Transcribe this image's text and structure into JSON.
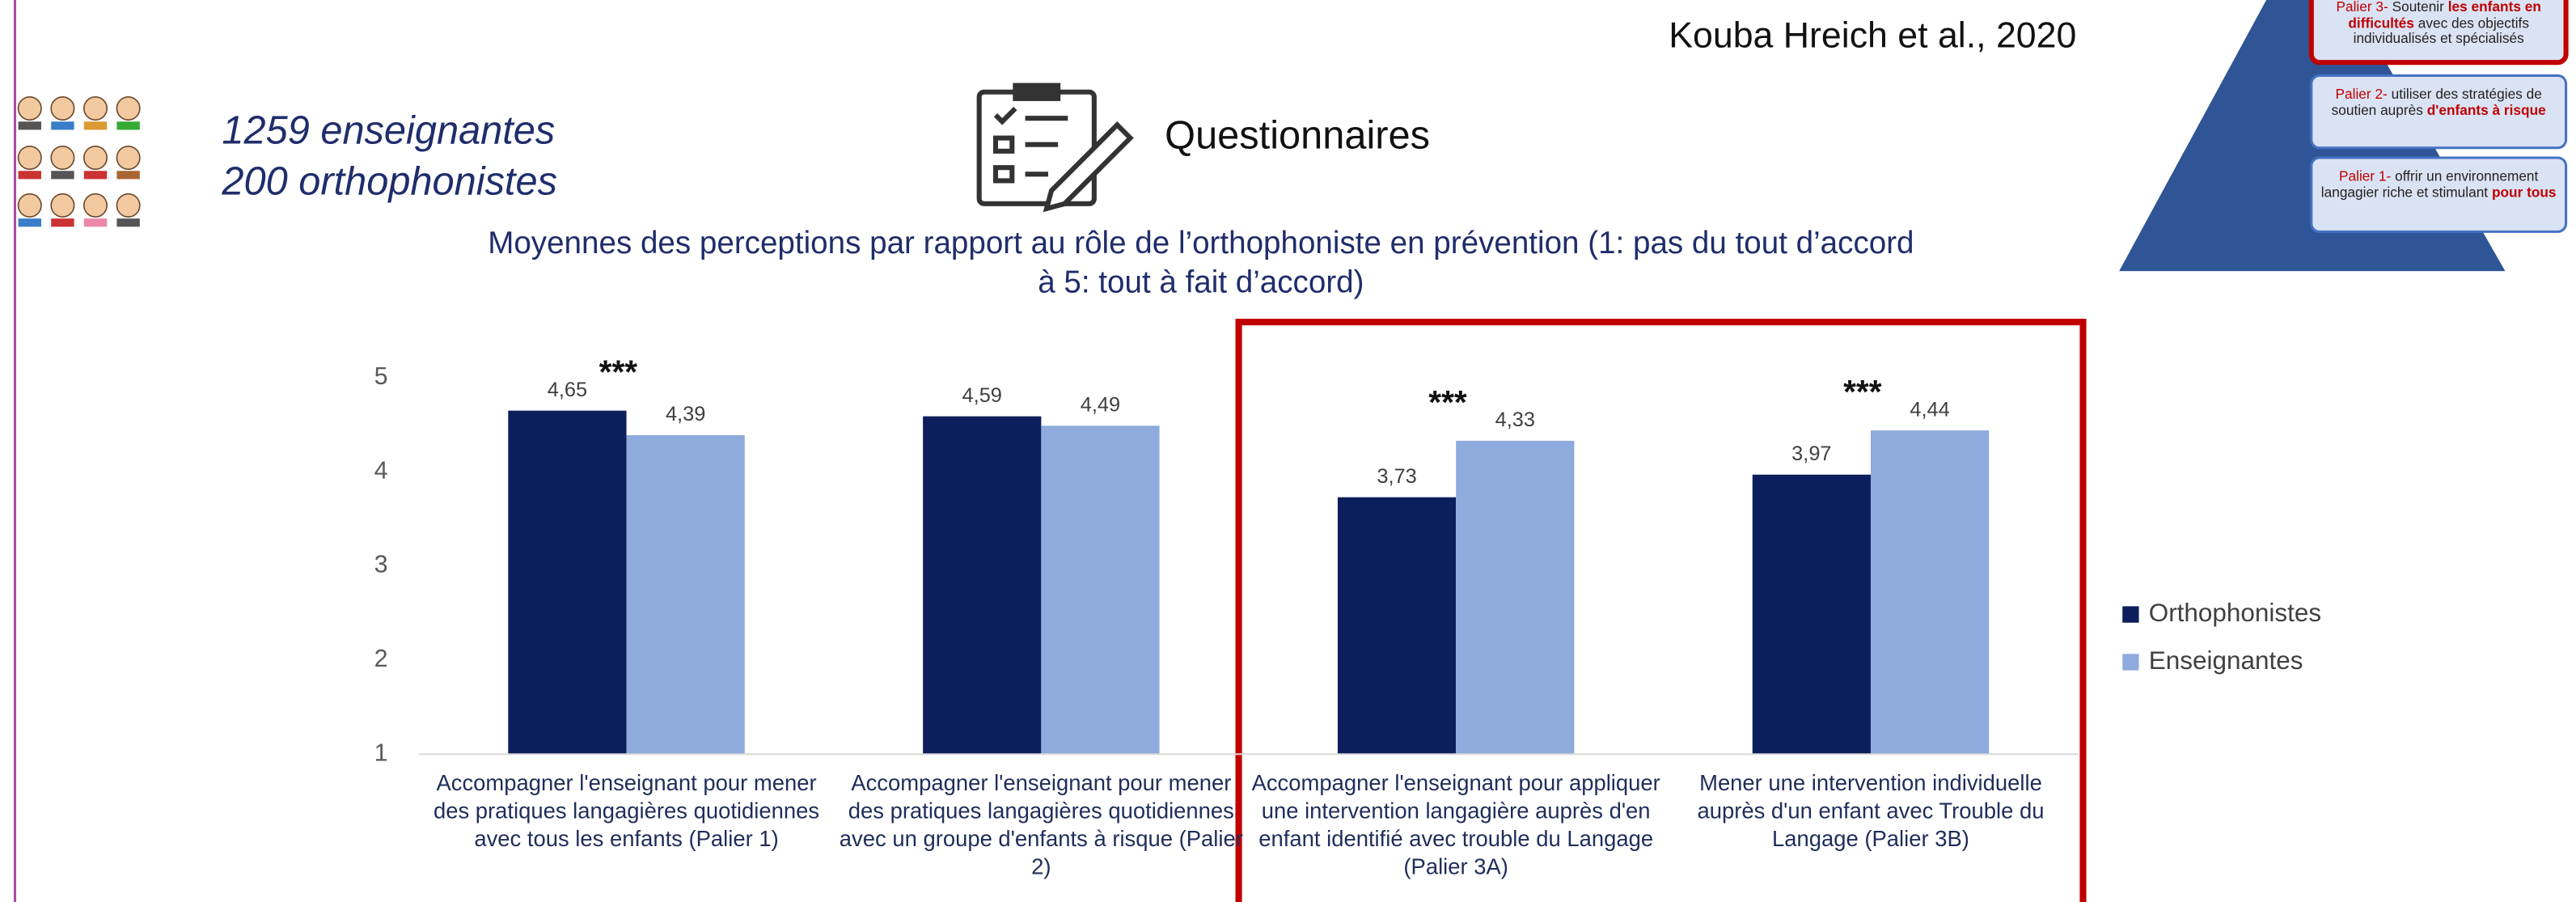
{
  "header": {
    "citation": "Kouba Hreich et al., 2020",
    "participants": [
      "1259 enseignantes",
      "200 orthophonistes"
    ],
    "method": "Questionnaires"
  },
  "pyramid": [
    {
      "parts": [
        {
          "text": "Palier 3-",
          "style": "label"
        },
        {
          "text": "Soutenir",
          "style": "plain"
        },
        {
          "text": "les enfants en difficultés",
          "style": "emphasis"
        },
        {
          "text": "avec des objectifs individualisés et spécialisés",
          "style": "plain"
        }
      ]
    },
    {
      "parts": [
        {
          "text": "Palier 2-",
          "style": "label"
        },
        {
          "text": "utiliser des stratégies de soutien auprès",
          "style": "plain"
        },
        {
          "text": "d'enfants à risque",
          "style": "emphasis"
        }
      ]
    },
    {
      "parts": [
        {
          "text": "Palier 1-",
          "style": "label"
        },
        {
          "text": "offrir un environnement langagier riche et stimulant",
          "style": "plain"
        },
        {
          "text": "pour tous",
          "style": "emphasis"
        }
      ]
    }
  ],
  "chart_data": {
    "type": "bar",
    "title": "Moyennes des perceptions par rapport au rôle de l’orthophoniste en prévention (1: pas du tout d’accord à 5: tout à fait d’accord)",
    "categories": [
      "Accompagner l'enseignant pour mener des pratiques langagières quotidiennes avec tous les enfants (Palier 1)",
      "Accompagner l'enseignant pour mener des pratiques langagières quotidiennes avec un groupe d'enfants à risque (Palier 2)",
      "Accompagner l'enseignant pour appliquer une intervention langagière auprès d'en enfant identifié avec trouble du Langage (Palier 3A)",
      "Mener une intervention individuelle auprès d'un enfant avec Trouble du Langage (Palier 3B)"
    ],
    "series": [
      {
        "name": "Orthophonistes",
        "color": "#0c1e5b",
        "values": [
          4.65,
          4.59,
          3.73,
          3.97
        ],
        "value_labels": [
          "4,65",
          "4,59",
          "3,73",
          "3,97"
        ]
      },
      {
        "name": "Enseignantes",
        "color": "#8faadc",
        "values": [
          4.39,
          4.49,
          4.33,
          4.44
        ],
        "value_labels": [
          "4,39",
          "4,49",
          "4,33",
          "4,44"
        ]
      }
    ],
    "significance": [
      "***",
      null,
      "***",
      "***"
    ],
    "ylim": [
      1,
      5.4
    ],
    "yticks": [
      1,
      2,
      3,
      4,
      5
    ],
    "grid": false,
    "legend": "right"
  }
}
